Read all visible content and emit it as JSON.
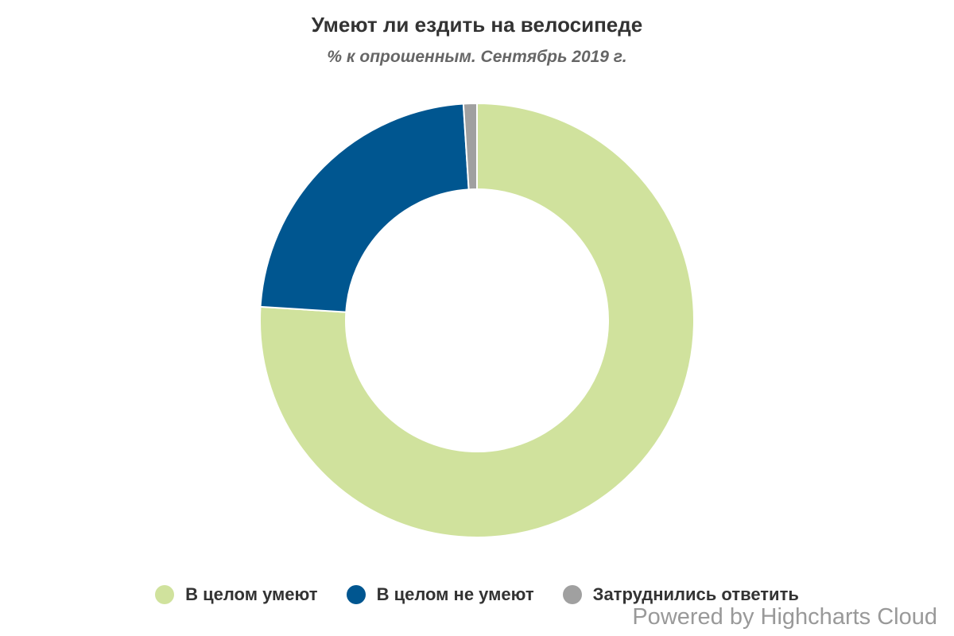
{
  "chart_data": {
    "type": "pie",
    "donut": true,
    "title": "Умеют ли ездить на велосипеде",
    "subtitle": "% к опрошенным. Сентябрь 2019 г.",
    "categories": [
      "В целом умеют",
      "В целом не умеют",
      "Затруднились ответить"
    ],
    "values": [
      76,
      23,
      1
    ],
    "colors": [
      "#d0e29d",
      "#005690",
      "#a0a0a0"
    ],
    "legend_position": "bottom-center"
  },
  "credits": "Powered by Highcharts Cloud"
}
